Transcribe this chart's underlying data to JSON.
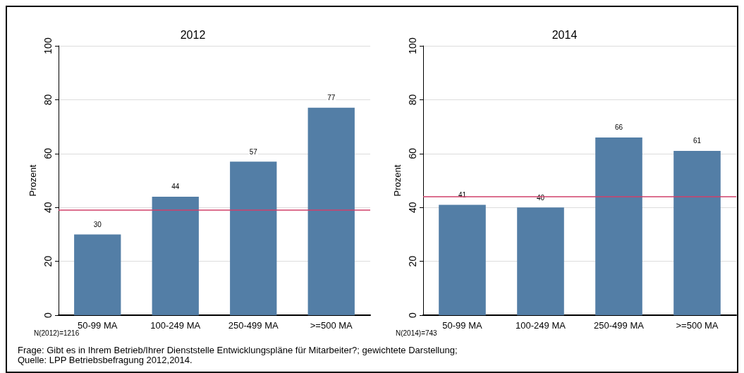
{
  "chart_data": [
    {
      "type": "bar",
      "title": "2012",
      "ylabel": "Prozent",
      "categories": [
        "50-99 MA",
        "100-249 MA",
        "250-499 MA",
        ">=500 MA"
      ],
      "values": [
        30,
        44,
        57,
        77
      ],
      "color": "#537ea6",
      "ylim": [
        0,
        100
      ],
      "yticks": [
        0,
        20,
        40,
        60,
        80,
        100
      ],
      "grid": "y",
      "data_labels": true,
      "ref_lines": [
        {
          "axis": "y",
          "value": 39,
          "color": "#d0406a"
        }
      ],
      "annotations": [
        "N(2012)=1216",
        "Frage: Gibt es in Ihrem Betrieb/Ihrer Dienststelle Entwicklungspläne für Mitarbeiter?; gewichtete Darstellung;",
        "Quelle: LPP Betriebsbefragung 2012,2014."
      ]
    },
    {
      "type": "bar",
      "title": "2014",
      "ylabel": "Prozent",
      "categories": [
        "50-99 MA",
        "100-249 MA",
        "250-499 MA",
        ">=500 MA"
      ],
      "values": [
        41,
        40,
        66,
        61
      ],
      "color": "#537ea6",
      "ylim": [
        0,
        100
      ],
      "yticks": [
        0,
        20,
        40,
        60,
        80,
        100
      ],
      "grid": "y",
      "data_labels": true,
      "ref_lines": [
        {
          "axis": "y",
          "value": 44,
          "color": "#d0406a"
        }
      ],
      "annotations": [
        "N(2014)=743"
      ]
    }
  ]
}
